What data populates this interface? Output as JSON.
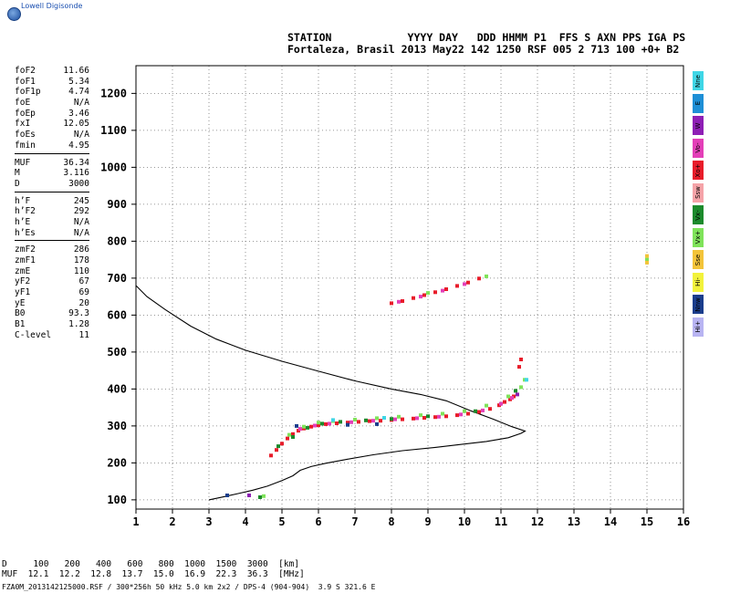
{
  "brand": {
    "name": "Lowell Digisonde",
    "logo_icon": "globe-icon"
  },
  "header": {
    "line1": "STATION            YYYY DAY   DDD HHMM P1  FFS S AXN PPS IGA PS",
    "line2": "Fortaleza, Brasil 2013 May22 142 1250 RSF 005 2 713 100 +0+ B2"
  },
  "params": {
    "group1": [
      {
        "k": "foF2",
        "v": "11.66"
      },
      {
        "k": "foF1",
        "v": "5.34"
      },
      {
        "k": "foF1p",
        "v": "4.74"
      },
      {
        "k": "foE",
        "v": "N/A"
      },
      {
        "k": "foEp",
        "v": "3.46"
      },
      {
        "k": "fxI",
        "v": "12.05"
      },
      {
        "k": "foEs",
        "v": "N/A"
      },
      {
        "k": "fmin",
        "v": "4.95"
      }
    ],
    "group2": [
      {
        "k": "MUF",
        "v": "36.34"
      },
      {
        "k": "M",
        "v": "3.116"
      },
      {
        "k": "D",
        "v": "3000"
      }
    ],
    "group3": [
      {
        "k": "h’F",
        "v": "245"
      },
      {
        "k": "h’F2",
        "v": "292"
      },
      {
        "k": "h’E",
        "v": "N/A"
      },
      {
        "k": "h’Es",
        "v": "N/A"
      }
    ],
    "group4": [
      {
        "k": "zmF2",
        "v": "286"
      },
      {
        "k": "zmF1",
        "v": "178"
      },
      {
        "k": "zmE",
        "v": "110"
      },
      {
        "k": "yF2",
        "v": "67"
      },
      {
        "k": "yF1",
        "v": "69"
      },
      {
        "k": "yE",
        "v": "20"
      },
      {
        "k": "B0",
        "v": "93.3"
      },
      {
        "k": "B1",
        "v": "1.28"
      },
      {
        "k": "C-level",
        "v": "11"
      }
    ]
  },
  "legend": [
    {
      "label": "Nne",
      "color": "#3fd6e6"
    },
    {
      "label": "E",
      "color": "#1e8fd6"
    },
    {
      "label": "W",
      "color": "#8e1fb5"
    },
    {
      "label": "Vo-",
      "color": "#e33fb8"
    },
    {
      "label": "Xo+",
      "color": "#e81c2a"
    },
    {
      "label": "Ssw",
      "color": "#f5a3a8"
    },
    {
      "label": "Vx-",
      "color": "#1c8a2c"
    },
    {
      "label": "Vx+",
      "color": "#7fe35a"
    },
    {
      "label": "Sse",
      "color": "#f3c43a"
    },
    {
      "label": "Hi-",
      "color": "#f2f23c"
    },
    {
      "label": "Nnw",
      "color": "#1a3d8c"
    },
    {
      "label": "Hi+",
      "color": "#b8b4f2"
    }
  ],
  "muf_table": {
    "line1": "D     100   200   400   600   800  1000  1500  3000  [km]",
    "line2": "MUF  12.1  12.2  12.8  13.7  15.0  16.9  22.3  36.3  [MHz]"
  },
  "footer": "FZA0M_2013142125000.RSF / 300*256h 50 kHz 5.0 km 2x2 / DPS-4 (904-904)  3.9 S 321.6 E",
  "chart_data": {
    "type": "scatter",
    "xlim": [
      1,
      16
    ],
    "ylim": [
      75,
      1275
    ],
    "xticks": [
      1,
      2,
      3,
      4,
      5,
      6,
      7,
      8,
      9,
      10,
      11,
      12,
      13,
      14,
      15,
      16
    ],
    "yticks": [
      100,
      200,
      300,
      400,
      500,
      600,
      700,
      800,
      900,
      1000,
      1100,
      1200
    ],
    "grid": true,
    "profile_curve": [
      [
        3.0,
        100
      ],
      [
        3.4,
        108
      ],
      [
        3.8,
        117
      ],
      [
        4.2,
        126
      ],
      [
        4.6,
        137
      ],
      [
        5.0,
        152
      ],
      [
        5.3,
        165
      ],
      [
        5.5,
        180
      ],
      [
        5.8,
        190
      ],
      [
        6.2,
        199
      ],
      [
        6.8,
        210
      ],
      [
        7.5,
        222
      ],
      [
        8.3,
        233
      ],
      [
        9.2,
        242
      ],
      [
        10.0,
        251
      ],
      [
        10.6,
        258
      ],
      [
        11.2,
        268
      ],
      [
        11.55,
        280
      ],
      [
        11.66,
        286
      ],
      [
        11.3,
        298
      ],
      [
        10.8,
        318
      ],
      [
        10.2,
        340
      ],
      [
        9.5,
        368
      ],
      [
        8.8,
        385
      ],
      [
        8.0,
        400
      ],
      [
        7.0,
        422
      ],
      [
        6.0,
        448
      ],
      [
        5.0,
        475
      ],
      [
        4.0,
        505
      ],
      [
        3.2,
        535
      ],
      [
        2.5,
        570
      ],
      [
        1.8,
        615
      ],
      [
        1.3,
        650
      ],
      [
        1.0,
        680
      ]
    ],
    "series": [
      {
        "name": "Xo+",
        "color": "#e81c2a",
        "points": [
          [
            4.7,
            220
          ],
          [
            4.85,
            235
          ],
          [
            5.0,
            252
          ],
          [
            5.15,
            266
          ],
          [
            5.3,
            278
          ],
          [
            5.45,
            287
          ],
          [
            5.6,
            293
          ],
          [
            5.8,
            298
          ],
          [
            6.0,
            302
          ],
          [
            6.2,
            305
          ],
          [
            6.5,
            307
          ],
          [
            6.8,
            309
          ],
          [
            7.1,
            311
          ],
          [
            7.4,
            313
          ],
          [
            7.7,
            314
          ],
          [
            8.0,
            316
          ],
          [
            8.3,
            318
          ],
          [
            8.6,
            320
          ],
          [
            8.9,
            322
          ],
          [
            9.2,
            324
          ],
          [
            9.5,
            326
          ],
          [
            9.8,
            329
          ],
          [
            10.1,
            333
          ],
          [
            10.4,
            338
          ],
          [
            10.7,
            346
          ],
          [
            10.95,
            356
          ],
          [
            11.1,
            365
          ],
          [
            11.25,
            372
          ],
          [
            11.35,
            380
          ],
          [
            8.0,
            632
          ],
          [
            8.3,
            638
          ],
          [
            8.6,
            646
          ],
          [
            8.9,
            654
          ],
          [
            9.2,
            662
          ],
          [
            9.5,
            670
          ],
          [
            9.8,
            679
          ],
          [
            10.1,
            688
          ],
          [
            10.4,
            699
          ],
          [
            11.55,
            480
          ],
          [
            11.5,
            460
          ]
        ]
      },
      {
        "name": "Vo-",
        "color": "#e33fb8",
        "points": [
          [
            5.5,
            292
          ],
          [
            5.9,
            301
          ],
          [
            6.3,
            306
          ],
          [
            6.9,
            310
          ],
          [
            7.5,
            314
          ],
          [
            8.1,
            318
          ],
          [
            8.7,
            321
          ],
          [
            9.3,
            325
          ],
          [
            9.9,
            331
          ],
          [
            10.5,
            342
          ],
          [
            11.0,
            360
          ],
          [
            11.3,
            376
          ],
          [
            8.2,
            636
          ],
          [
            8.8,
            650
          ],
          [
            9.4,
            666
          ],
          [
            10.0,
            684
          ]
        ]
      },
      {
        "name": "Vx+",
        "color": "#7fe35a",
        "points": [
          [
            5.2,
            276
          ],
          [
            5.6,
            298
          ],
          [
            6.0,
            309
          ],
          [
            6.4,
            313
          ],
          [
            7.0,
            317
          ],
          [
            7.6,
            321
          ],
          [
            8.2,
            325
          ],
          [
            8.8,
            329
          ],
          [
            9.4,
            333
          ],
          [
            10.0,
            340
          ],
          [
            10.6,
            355
          ],
          [
            11.2,
            380
          ],
          [
            11.55,
            405
          ],
          [
            11.65,
            425
          ],
          [
            9.0,
            660
          ],
          [
            10.6,
            705
          ],
          [
            15.0,
            750
          ],
          [
            4.5,
            110
          ]
        ]
      },
      {
        "name": "Vx-",
        "color": "#1c8a2c",
        "points": [
          [
            4.9,
            245
          ],
          [
            5.3,
            270
          ],
          [
            5.7,
            295
          ],
          [
            6.1,
            306
          ],
          [
            6.6,
            311
          ],
          [
            7.3,
            315
          ],
          [
            8.0,
            319
          ],
          [
            9.0,
            326
          ],
          [
            10.3,
            340
          ],
          [
            11.4,
            395
          ],
          [
            4.4,
            107
          ]
        ]
      },
      {
        "name": "Nne",
        "color": "#3fd6e6",
        "points": [
          [
            6.4,
            316
          ],
          [
            7.8,
            322
          ],
          [
            11.7,
            425
          ]
        ]
      },
      {
        "name": "W",
        "color": "#8e1fb5",
        "points": [
          [
            11.45,
            385
          ],
          [
            4.1,
            112
          ]
        ]
      },
      {
        "name": "Sse",
        "color": "#f3c43a",
        "points": [
          [
            15.0,
            760
          ],
          [
            15.0,
            742
          ]
        ]
      },
      {
        "name": "Nnw",
        "color": "#1a3d8c",
        "points": [
          [
            5.4,
            300
          ],
          [
            6.8,
            303
          ],
          [
            7.6,
            305
          ],
          [
            3.5,
            112
          ]
        ]
      }
    ]
  }
}
